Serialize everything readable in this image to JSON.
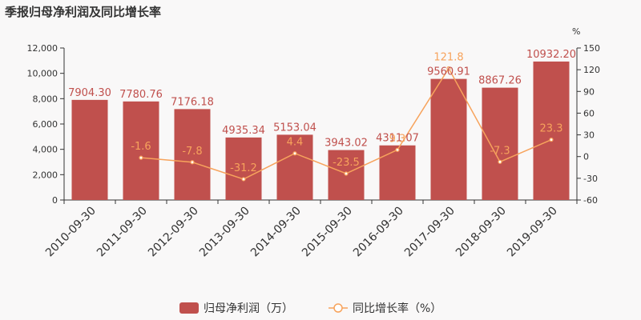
{
  "chart_data": {
    "type": "bar",
    "title": "季报归母净利润及同比增长率",
    "categories": [
      "2010-09-30",
      "2011-09-30",
      "2012-09-30",
      "2013-09-30",
      "2014-09-30",
      "2015-09-30",
      "2016-09-30",
      "2017-09-30",
      "2018-09-30",
      "2019-09-30"
    ],
    "series": [
      {
        "name": "归母净利润（万）",
        "type": "bar",
        "axis": "left",
        "values": [
          7904.3,
          7780.76,
          7176.18,
          4935.34,
          5153.04,
          3943.02,
          4311.07,
          9560.91,
          8867.26,
          10932.2
        ],
        "labels": [
          "7904.30",
          "7780.76",
          "7176.18",
          "4935.34",
          "5153.04",
          "3943.02",
          "4311.07",
          "9560.91",
          "8867.26",
          "10932.20"
        ],
        "color": "#c0504d"
      },
      {
        "name": "同比增长率（%）",
        "type": "line",
        "axis": "right",
        "values": [
          null,
          -1.6,
          -7.8,
          -31.2,
          4.4,
          -23.5,
          9.3,
          121.8,
          -7.3,
          23.3
        ],
        "labels": [
          "",
          "-1.6",
          "-7.8",
          "-31.2",
          "4.4",
          "-23.5",
          "9.3",
          "121.8",
          "-7.3",
          "23.3"
        ],
        "color": "#f7a35c"
      }
    ],
    "y_left": {
      "min": 0,
      "max": 12000,
      "ticks": [
        "0",
        "2,000",
        "4,000",
        "6,000",
        "8,000",
        "10,000",
        "12,000"
      ]
    },
    "y_right": {
      "min": -60,
      "max": 150,
      "unit": "%",
      "ticks": [
        "-60",
        "-30",
        "0",
        "30",
        "60",
        "90",
        "120",
        "150"
      ]
    },
    "legend": {
      "position": "bottom-center",
      "items": [
        "归母净利润（万）",
        "同比增长率（%）"
      ]
    },
    "grid": false
  }
}
